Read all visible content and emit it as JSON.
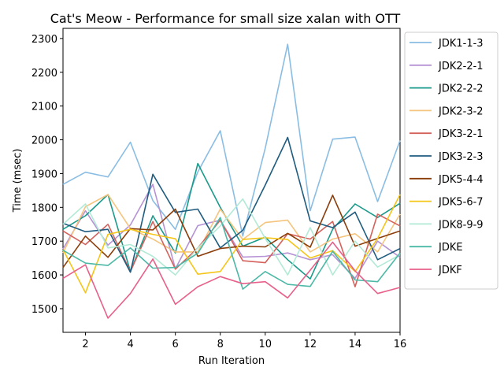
{
  "chart_data": {
    "type": "line",
    "title": "Cat's Meow - Performance for small size xalan with OTT",
    "xlabel": "Run Iteration",
    "ylabel": "Time (msec)",
    "xlim": [
      1,
      16
    ],
    "ylim": [
      1430,
      2330
    ],
    "x_ticks": [
      2,
      4,
      6,
      8,
      10,
      12,
      14,
      16
    ],
    "y_ticks": [
      1500,
      1600,
      1700,
      1800,
      1900,
      2000,
      2100,
      2200,
      2300
    ],
    "grid": false,
    "legend_position": "outside-right",
    "x": [
      1,
      2,
      3,
      4,
      5,
      6,
      7,
      8,
      9,
      10,
      11,
      12,
      13,
      14,
      15,
      16
    ],
    "series": [
      {
        "name": "JDK1-1-3",
        "color": "#8abde3",
        "values": [
          1868,
          1904,
          1890,
          1993,
          1820,
          1735,
          1905,
          2027,
          1715,
          1975,
          2283,
          1790,
          2002,
          2008,
          1817,
          1998
        ]
      },
      {
        "name": "JDK2-2-1",
        "color": "#b593d4",
        "values": [
          1677,
          1790,
          1688,
          1748,
          1868,
          1618,
          1746,
          1762,
          1653,
          1655,
          1665,
          1645,
          1660,
          1590,
          1700,
          1652
        ]
      },
      {
        "name": "JDK2-2-2",
        "color": "#1a9a8a",
        "values": [
          1735,
          1775,
          1838,
          1610,
          1775,
          1665,
          1930,
          1800,
          1685,
          1712,
          1645,
          1588,
          1735,
          1810,
          1770,
          1812
        ]
      },
      {
        "name": "JDK2-3-2",
        "color": "#f5c47e",
        "values": [
          1665,
          1802,
          1838,
          1737,
          1706,
          1668,
          1668,
          1795,
          1705,
          1755,
          1762,
          1668,
          1706,
          1722,
          1668,
          1780
        ]
      },
      {
        "name": "JDK3-2-1",
        "color": "#d4615c",
        "values": [
          1730,
          1690,
          1750,
          1610,
          1758,
          1617,
          1680,
          1762,
          1642,
          1636,
          1722,
          1706,
          1758,
          1565,
          1780,
          1745
        ]
      },
      {
        "name": "JDK3-2-3",
        "color": "#1f5c80",
        "values": [
          1753,
          1728,
          1735,
          1608,
          1898,
          1785,
          1795,
          1680,
          1732,
          1866,
          2007,
          1760,
          1740,
          1786,
          1645,
          1678
        ]
      },
      {
        "name": "JDK5-4-4",
        "color": "#8b3d0a",
        "values": [
          1622,
          1715,
          1652,
          1737,
          1733,
          1795,
          1655,
          1678,
          1685,
          1683,
          1723,
          1682,
          1836,
          1685,
          1708,
          1730
        ]
      },
      {
        "name": "JDK5-6-7",
        "color": "#f5c518",
        "values": [
          1675,
          1547,
          1720,
          1735,
          1720,
          1707,
          1602,
          1610,
          1705,
          1710,
          1705,
          1650,
          1672,
          1610,
          1708,
          1838
        ]
      },
      {
        "name": "JDK8-9-9",
        "color": "#b2ead5",
        "values": [
          1750,
          1810,
          1680,
          1690,
          1655,
          1600,
          1680,
          1745,
          1825,
          1708,
          1600,
          1740,
          1600,
          1700,
          1623,
          1660
        ]
      },
      {
        "name": "JDKE",
        "color": "#4cb8a6",
        "values": [
          1673,
          1635,
          1628,
          1680,
          1620,
          1622,
          1664,
          1770,
          1558,
          1610,
          1572,
          1566,
          1670,
          1585,
          1580,
          1665
        ]
      },
      {
        "name": "JDKF",
        "color": "#e8608a",
        "values": [
          1590,
          1630,
          1472,
          1545,
          1647,
          1513,
          1565,
          1595,
          1574,
          1580,
          1532,
          1614,
          1697,
          1612,
          1545,
          1563
        ]
      }
    ]
  }
}
